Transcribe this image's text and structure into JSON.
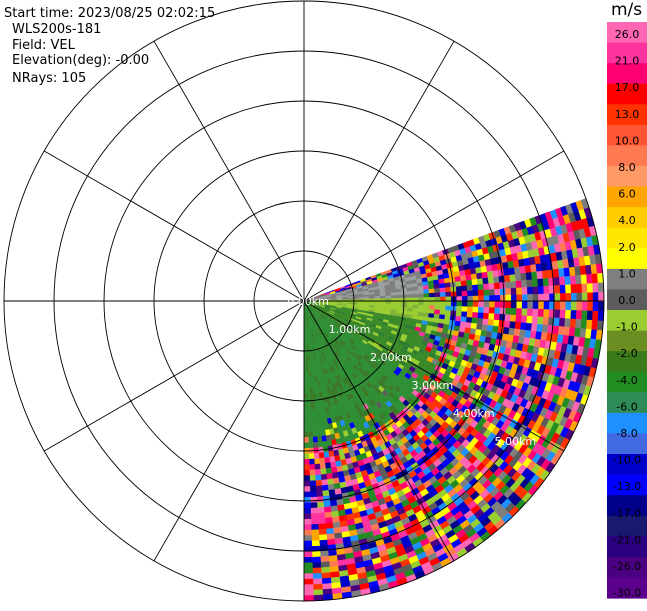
{
  "header": {
    "start_time": "Start time: 2023/08/25 02:02:15",
    "instrument": "WLS200s-181",
    "field": "Field: VEL",
    "elevation": "Elevation(deg): -0.00",
    "nrays": "NRays: 105"
  },
  "chart_data": {
    "type": "heatmap",
    "projection": "polar-ppi",
    "ring_labels": [
      "0.00km",
      "1.00km",
      "2.00km",
      "3.00km",
      "4.00km",
      "5.00km"
    ],
    "range_km": [
      0,
      6
    ],
    "ring_spacing_km": 1,
    "spoke_count": 12,
    "sector_azimuth_deg": [
      70,
      180
    ],
    "nrays": 105,
    "colorbar": {
      "unit": "m/s",
      "ticks": [
        "26.0",
        "21.0",
        "17.0",
        "13.0",
        "10.0",
        "8.0",
        "6.0",
        "4.0",
        "2.0",
        "1.0",
        "0.0",
        "-1.0",
        "-2.0",
        "-4.0",
        "-6.0",
        "-8.0",
        "-10.0",
        "-13.0",
        "-17.0",
        "-21.0",
        "-26.0",
        "-30.0"
      ],
      "colors": [
        "#ff66b3",
        "#ff33a0",
        "#ff0073",
        "#ff0000",
        "#ff3300",
        "#ff5533",
        "#ff7a52",
        "#ff9966",
        "#ffa500",
        "#ffcc00",
        "#ffe600",
        "#ffff00",
        "#7f7f7f",
        "#5c5c5c",
        "#9acd32",
        "#6b8e23",
        "#3a7a1a",
        "#228b22",
        "#2e8b57",
        "#1e90ff",
        "#4169e1",
        "#0000cd",
        "#0000ff",
        "#00008b",
        "#191970",
        "#2b0080",
        "#4b0082",
        "#5a008c"
      ]
    }
  }
}
